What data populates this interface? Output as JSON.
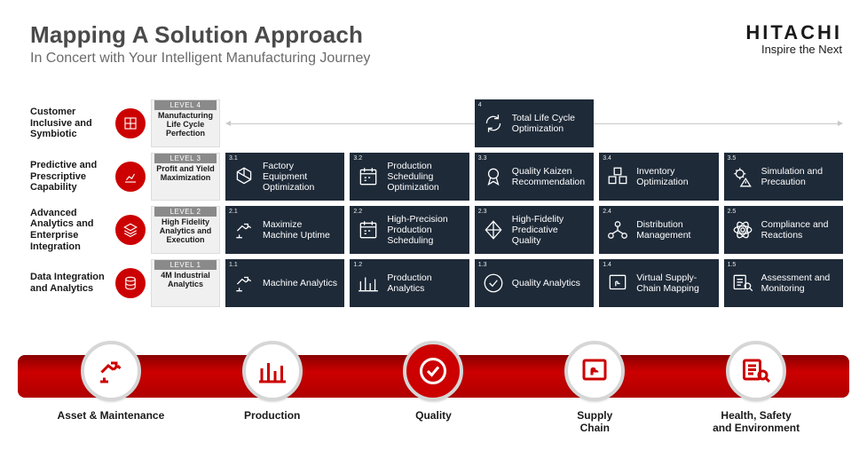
{
  "header": {
    "title": "Mapping A Solution Approach",
    "subtitle": "In Concert with Your Intelligent Manufacturing Journey",
    "brand_name": "HITACHI",
    "brand_tag": "Inspire the Next"
  },
  "rows": [
    {
      "label": "Customer Inclusive and Symbiotic",
      "level_pill": "LEVEL 4",
      "level_text": "Manufacturing Life Cycle Perfection",
      "cells": [
        null,
        null,
        {
          "num": "4",
          "text": "Total Life Cycle Optimization",
          "icon": "cycle"
        },
        null,
        null
      ]
    },
    {
      "label": "Predictive and Prescriptive Capability",
      "level_pill": "LEVEL 3",
      "level_text": "Profit and Yield Maximization",
      "cells": [
        {
          "num": "3.1",
          "text": "Factory Equipment Optimization",
          "icon": "hex"
        },
        {
          "num": "3.2",
          "text": "Production Scheduling Optimization",
          "icon": "calendar"
        },
        {
          "num": "3.3",
          "text": "Quality Kaizen Recommendation",
          "icon": "ribbon"
        },
        {
          "num": "3.4",
          "text": "Inventory Optimization",
          "icon": "boxes"
        },
        {
          "num": "3.5",
          "text": "Simulation and Precaution",
          "icon": "gearwarn"
        }
      ]
    },
    {
      "label": "Advanced Analytics and Enterprise Integration",
      "level_pill": "LEVEL 2",
      "level_text": "High Fidelity Analytics and Execution",
      "cells": [
        {
          "num": "2.1",
          "text": "Maximize Machine Uptime",
          "icon": "robot"
        },
        {
          "num": "2.2",
          "text": "High-Precision Production Scheduling",
          "icon": "calendar"
        },
        {
          "num": "2.3",
          "text": "High-Fidelity Predicative Quality",
          "icon": "diamond"
        },
        {
          "num": "2.4",
          "text": "Distribution Management",
          "icon": "dist"
        },
        {
          "num": "2.5",
          "text": "Compliance and Reactions",
          "icon": "atom"
        }
      ]
    },
    {
      "label": "Data Integration and Analytics",
      "level_pill": "LEVEL 1",
      "level_text": "4M Industrial Analytics",
      "cells": [
        {
          "num": "1.1",
          "text": "Machine Analytics",
          "icon": "robot"
        },
        {
          "num": "1.2",
          "text": "Production Analytics",
          "icon": "bars"
        },
        {
          "num": "1.3",
          "text": "Quality Analytics",
          "icon": "check"
        },
        {
          "num": "1.4",
          "text": "Virtual Supply-Chain Mapping",
          "icon": "touch"
        },
        {
          "num": "1.5",
          "text": "Assessment and Monitoring",
          "icon": "search"
        }
      ]
    }
  ],
  "pillars": [
    {
      "label": "Asset & Maintenance",
      "icon": "robot",
      "solid": false
    },
    {
      "label": "Production",
      "icon": "bars",
      "solid": false
    },
    {
      "label": "Quality",
      "icon": "check",
      "solid": true
    },
    {
      "label": "Supply\nChain",
      "icon": "touch",
      "solid": false
    },
    {
      "label": "Health, Safety\nand Environment",
      "icon": "search",
      "solid": false
    }
  ],
  "colors": {
    "cell_bg": "#1e2a38",
    "accent": "#c00",
    "level_bg": "#f0f0f0",
    "pill_bg": "#8a8a8a"
  }
}
